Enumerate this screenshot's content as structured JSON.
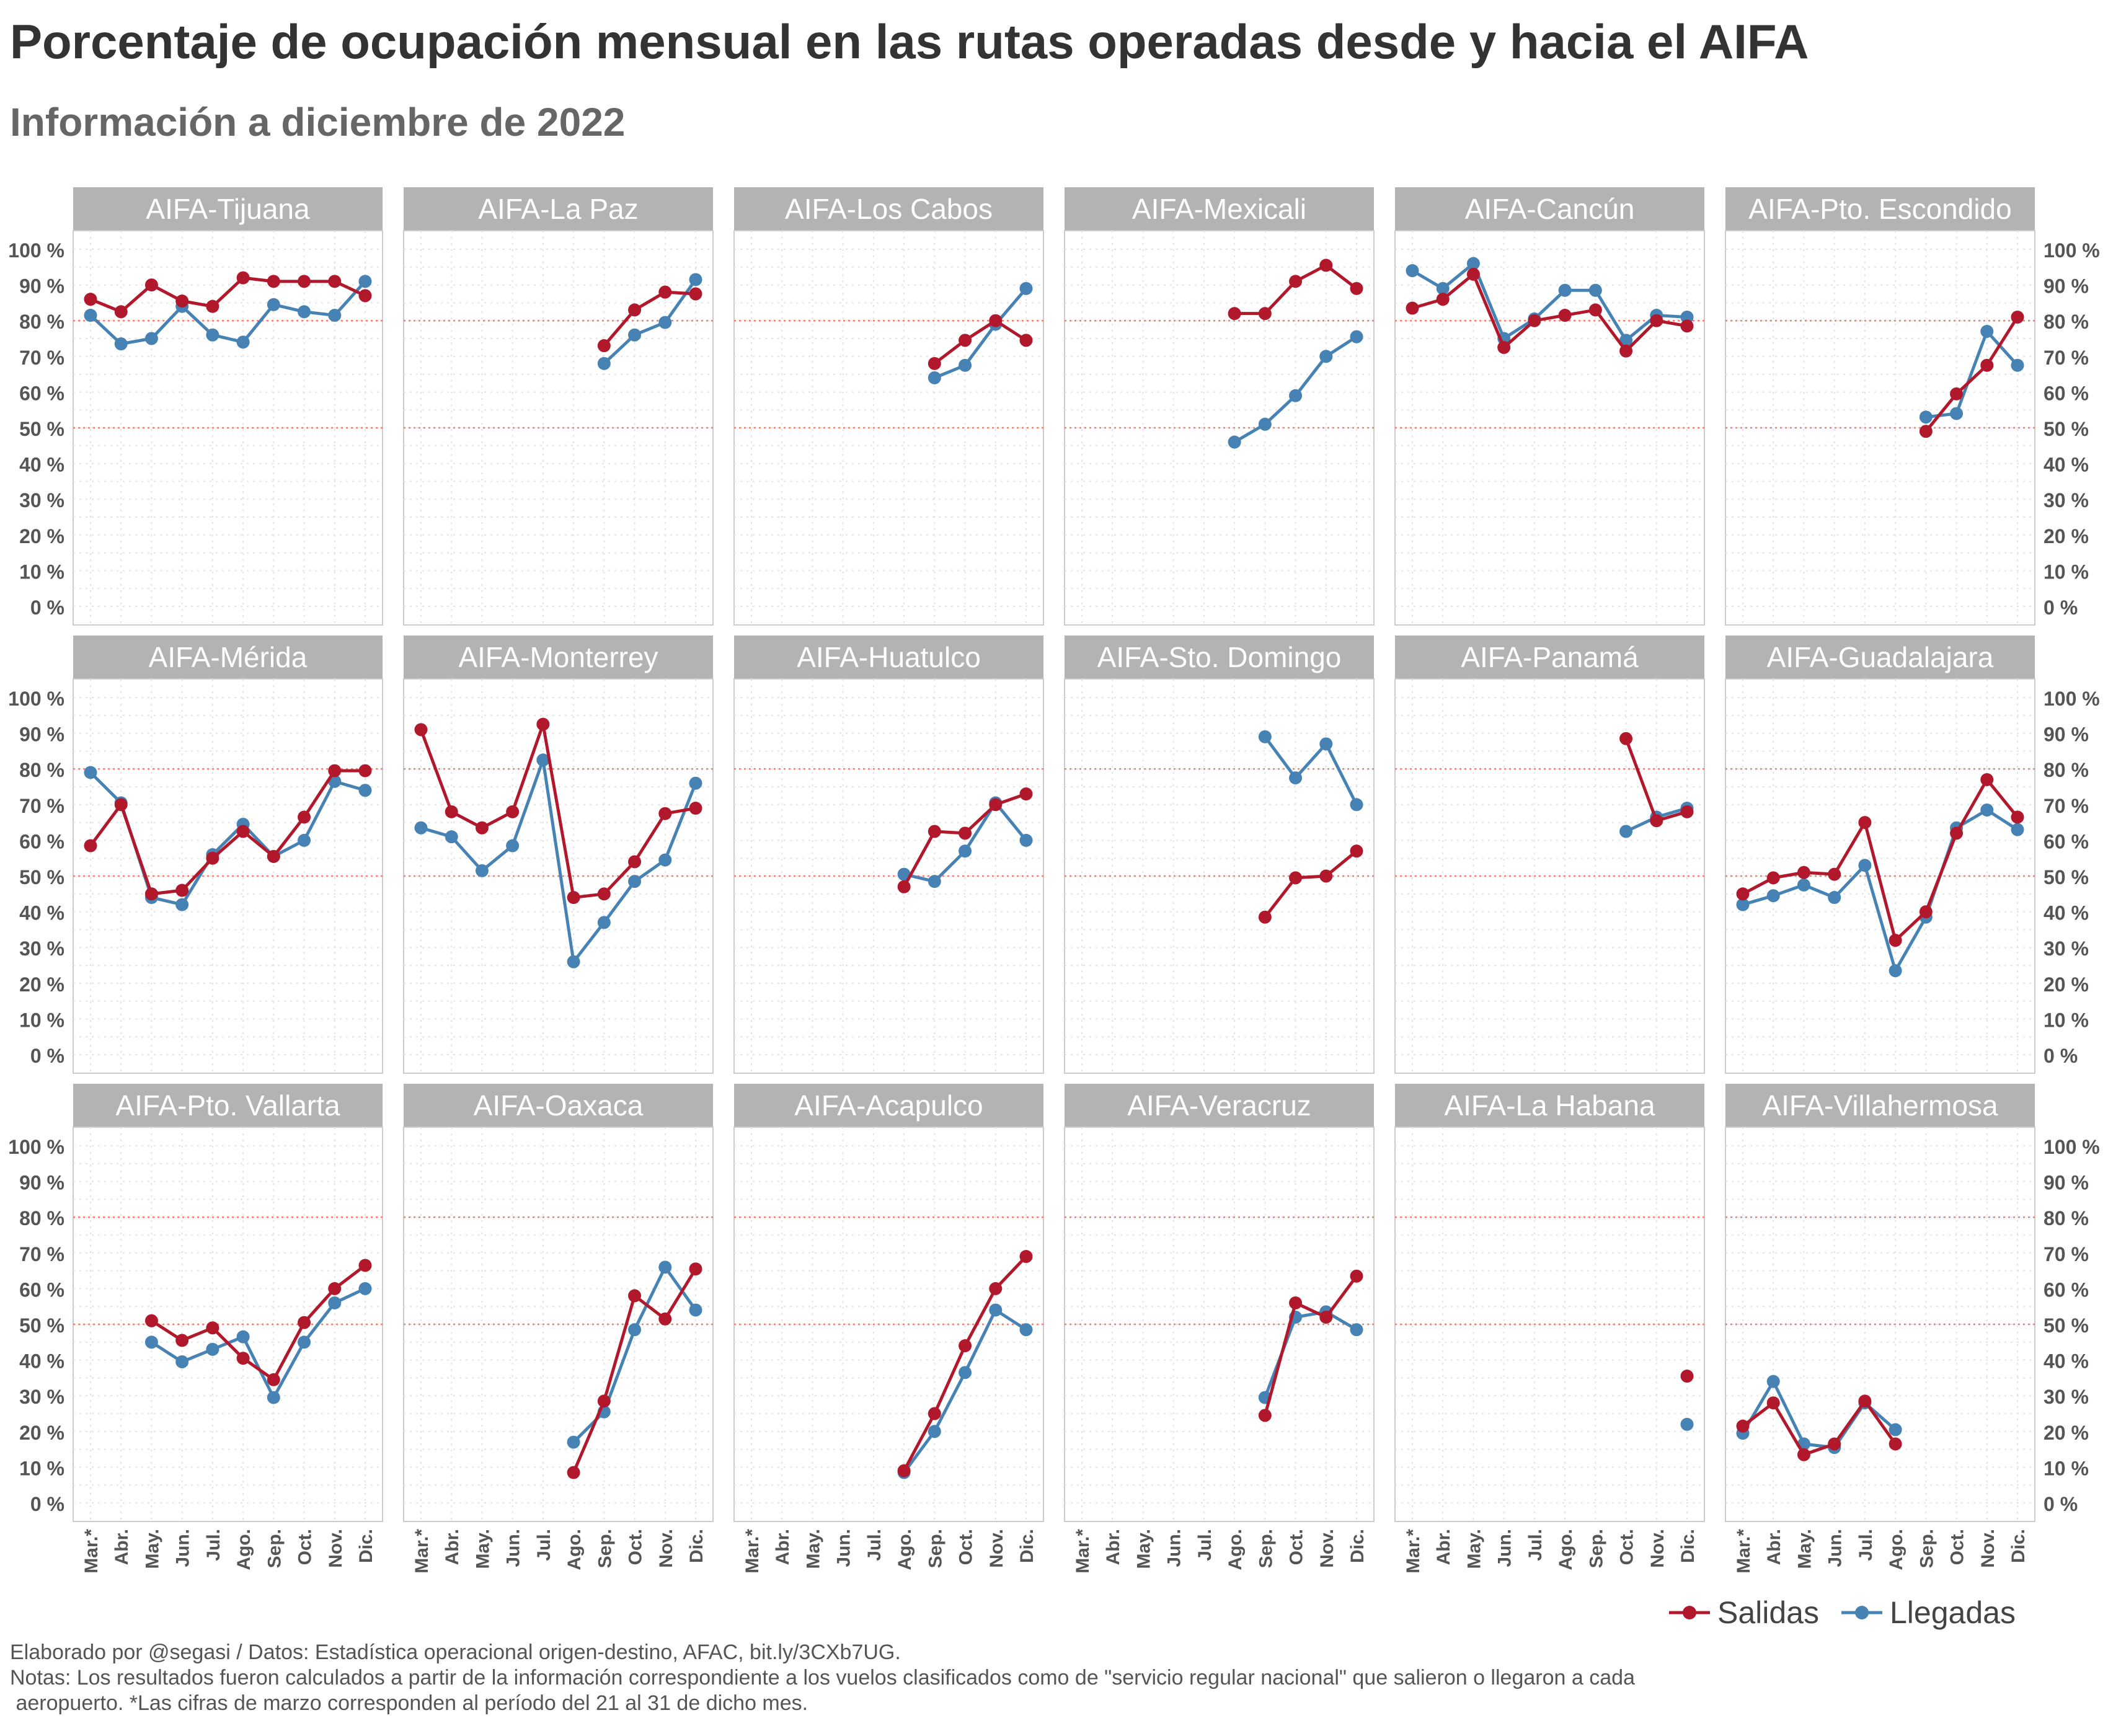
{
  "title": "Porcentaje de ocupación mensual en las rutas operadas desde y hacia el AIFA",
  "subtitle": "Información a diciembre de 2022",
  "legend": [
    {
      "label": "Salidas",
      "color": "#b2182b"
    },
    {
      "label": "Llegadas",
      "color": "#4682b4"
    }
  ],
  "caption": [
    "Elaborado por @segasi / Datos: Estadística operacional origen-destino, AFAC, bit.ly/3CXb7UG.",
    "Notas: Los resultados fueron calculados a partir de la información correspondiente a los vuelos clasificados como de \"servicio regular nacional\" que salieron o llegaron a cada",
    " aeropuerto. *Las cifras de marzo corresponden al período del 21 al 31 de dicho mes."
  ],
  "chart_data": {
    "type": "line",
    "facet": "small-multiples",
    "months": [
      "Mar.*",
      "Abr.",
      "May.",
      "Jun.",
      "Jul.",
      "Ago.",
      "Sep.",
      "Oct.",
      "Nov.",
      "Dic."
    ],
    "y_ticks": [
      "0 %",
      "10 %",
      "20 %",
      "30 %",
      "40 %",
      "50 %",
      "60 %",
      "70 %",
      "80 %",
      "90 %",
      "100 %"
    ],
    "ylim": [
      0,
      100
    ],
    "reference_lines": [
      50,
      80
    ],
    "grid": true,
    "legend_position": "bottom-right",
    "series_names": [
      "Salidas",
      "Llegadas"
    ],
    "panels": [
      {
        "name": "AIFA-Tijuana",
        "Salidas": [
          86,
          82.5,
          90,
          85.5,
          84,
          92,
          91,
          91,
          91,
          87
        ],
        "Llegadas": [
          81.5,
          73.5,
          75,
          84,
          76,
          74,
          84.5,
          82.5,
          81.5,
          91
        ]
      },
      {
        "name": "AIFA-La Paz",
        "Salidas": [
          null,
          null,
          null,
          null,
          null,
          null,
          73,
          83,
          88,
          87.5
        ],
        "Llegadas": [
          null,
          null,
          null,
          null,
          null,
          null,
          68,
          76,
          79.5,
          91.5
        ]
      },
      {
        "name": "AIFA-Los Cabos",
        "Salidas": [
          null,
          null,
          null,
          null,
          null,
          null,
          68,
          74.5,
          80,
          74.5
        ],
        "Llegadas": [
          null,
          null,
          null,
          null,
          null,
          null,
          64,
          67.5,
          79,
          89
        ]
      },
      {
        "name": "AIFA-Mexicali",
        "Salidas": [
          null,
          null,
          null,
          null,
          null,
          82,
          82,
          91,
          95.5,
          89
        ],
        "Llegadas": [
          null,
          null,
          null,
          null,
          null,
          46,
          51,
          59,
          70,
          75.5
        ]
      },
      {
        "name": "AIFA-Cancún",
        "Salidas": [
          83.5,
          86,
          93,
          72.5,
          80,
          81.5,
          83,
          71.5,
          80,
          78.5
        ],
        "Llegadas": [
          94,
          89,
          96,
          75,
          80.5,
          88.5,
          88.5,
          74.5,
          81.5,
          81
        ]
      },
      {
        "name": "AIFA-Pto. Escondido",
        "Salidas": [
          null,
          null,
          null,
          null,
          null,
          null,
          49,
          59.5,
          67.5,
          81
        ],
        "Llegadas": [
          null,
          null,
          null,
          null,
          null,
          null,
          53,
          54,
          77,
          67.5
        ]
      },
      {
        "name": "AIFA-Mérida",
        "Salidas": [
          58.5,
          70,
          45,
          46,
          55,
          62.5,
          55.5,
          66.5,
          79.5,
          79.5
        ],
        "Llegadas": [
          79,
          70.5,
          44,
          42,
          56,
          64.5,
          55.5,
          60,
          76.5,
          74
        ]
      },
      {
        "name": "AIFA-Monterrey",
        "Salidas": [
          91,
          68,
          63.5,
          68,
          92.5,
          44,
          45,
          54,
          67.5,
          69
        ],
        "Llegadas": [
          63.5,
          61,
          51.5,
          58.5,
          82.5,
          26,
          37,
          48.5,
          54.5,
          76
        ]
      },
      {
        "name": "AIFA-Huatulco",
        "Salidas": [
          null,
          null,
          null,
          null,
          null,
          47,
          62.5,
          62,
          70,
          73
        ],
        "Llegadas": [
          null,
          null,
          null,
          null,
          null,
          50.5,
          48.5,
          57,
          70.5,
          60
        ]
      },
      {
        "name": "AIFA-Sto. Domingo",
        "Salidas": [
          null,
          null,
          null,
          null,
          null,
          null,
          38.5,
          49.5,
          50,
          57
        ],
        "Llegadas": [
          null,
          null,
          null,
          null,
          null,
          null,
          89,
          77.5,
          87,
          70
        ]
      },
      {
        "name": "AIFA-Panamá",
        "Salidas": [
          null,
          null,
          null,
          null,
          null,
          null,
          null,
          88.5,
          65.5,
          68
        ],
        "Llegadas": [
          null,
          null,
          null,
          null,
          null,
          null,
          null,
          62.5,
          66.5,
          69
        ]
      },
      {
        "name": "AIFA-Guadalajara",
        "Salidas": [
          45,
          49.5,
          51,
          50.5,
          65,
          32,
          40,
          62,
          77,
          66.5
        ],
        "Llegadas": [
          42,
          44.5,
          47.5,
          44,
          53,
          23.5,
          38.5,
          63.5,
          68.5,
          63
        ]
      },
      {
        "name": "AIFA-Pto. Vallarta",
        "Salidas": [
          null,
          null,
          51,
          45.5,
          49,
          40.5,
          34.5,
          50.5,
          60,
          66.5
        ],
        "Llegadas": [
          null,
          null,
          45,
          39.5,
          43,
          46.5,
          29.5,
          45,
          56,
          60
        ]
      },
      {
        "name": "AIFA-Oaxaca",
        "Salidas": [
          null,
          null,
          null,
          null,
          null,
          8.5,
          28.5,
          58,
          51.5,
          65.5
        ],
        "Llegadas": [
          null,
          null,
          null,
          null,
          null,
          17,
          25.5,
          48.5,
          66,
          54
        ]
      },
      {
        "name": "AIFA-Acapulco",
        "Salidas": [
          null,
          null,
          null,
          null,
          null,
          9,
          25,
          44,
          60,
          69
        ],
        "Llegadas": [
          null,
          null,
          null,
          null,
          null,
          8.5,
          20,
          36.5,
          54,
          48.5
        ]
      },
      {
        "name": "AIFA-Veracruz",
        "Salidas": [
          null,
          null,
          null,
          null,
          null,
          null,
          24.5,
          56,
          52,
          63.5
        ],
        "Llegadas": [
          null,
          null,
          null,
          null,
          null,
          null,
          29.5,
          52,
          53.5,
          48.5
        ]
      },
      {
        "name": "AIFA-La Habana",
        "Salidas": [
          null,
          null,
          null,
          null,
          null,
          null,
          null,
          null,
          null,
          35.5
        ],
        "Llegadas": [
          null,
          null,
          null,
          null,
          null,
          null,
          null,
          null,
          null,
          22
        ]
      },
      {
        "name": "AIFA-Villahermosa",
        "Salidas": [
          21.5,
          28,
          13.5,
          16.5,
          28.5,
          16.5,
          null,
          null,
          null,
          null
        ],
        "Llegadas": [
          19.5,
          34,
          16.5,
          15.5,
          28,
          20.5,
          null,
          null,
          null,
          null
        ]
      }
    ]
  }
}
